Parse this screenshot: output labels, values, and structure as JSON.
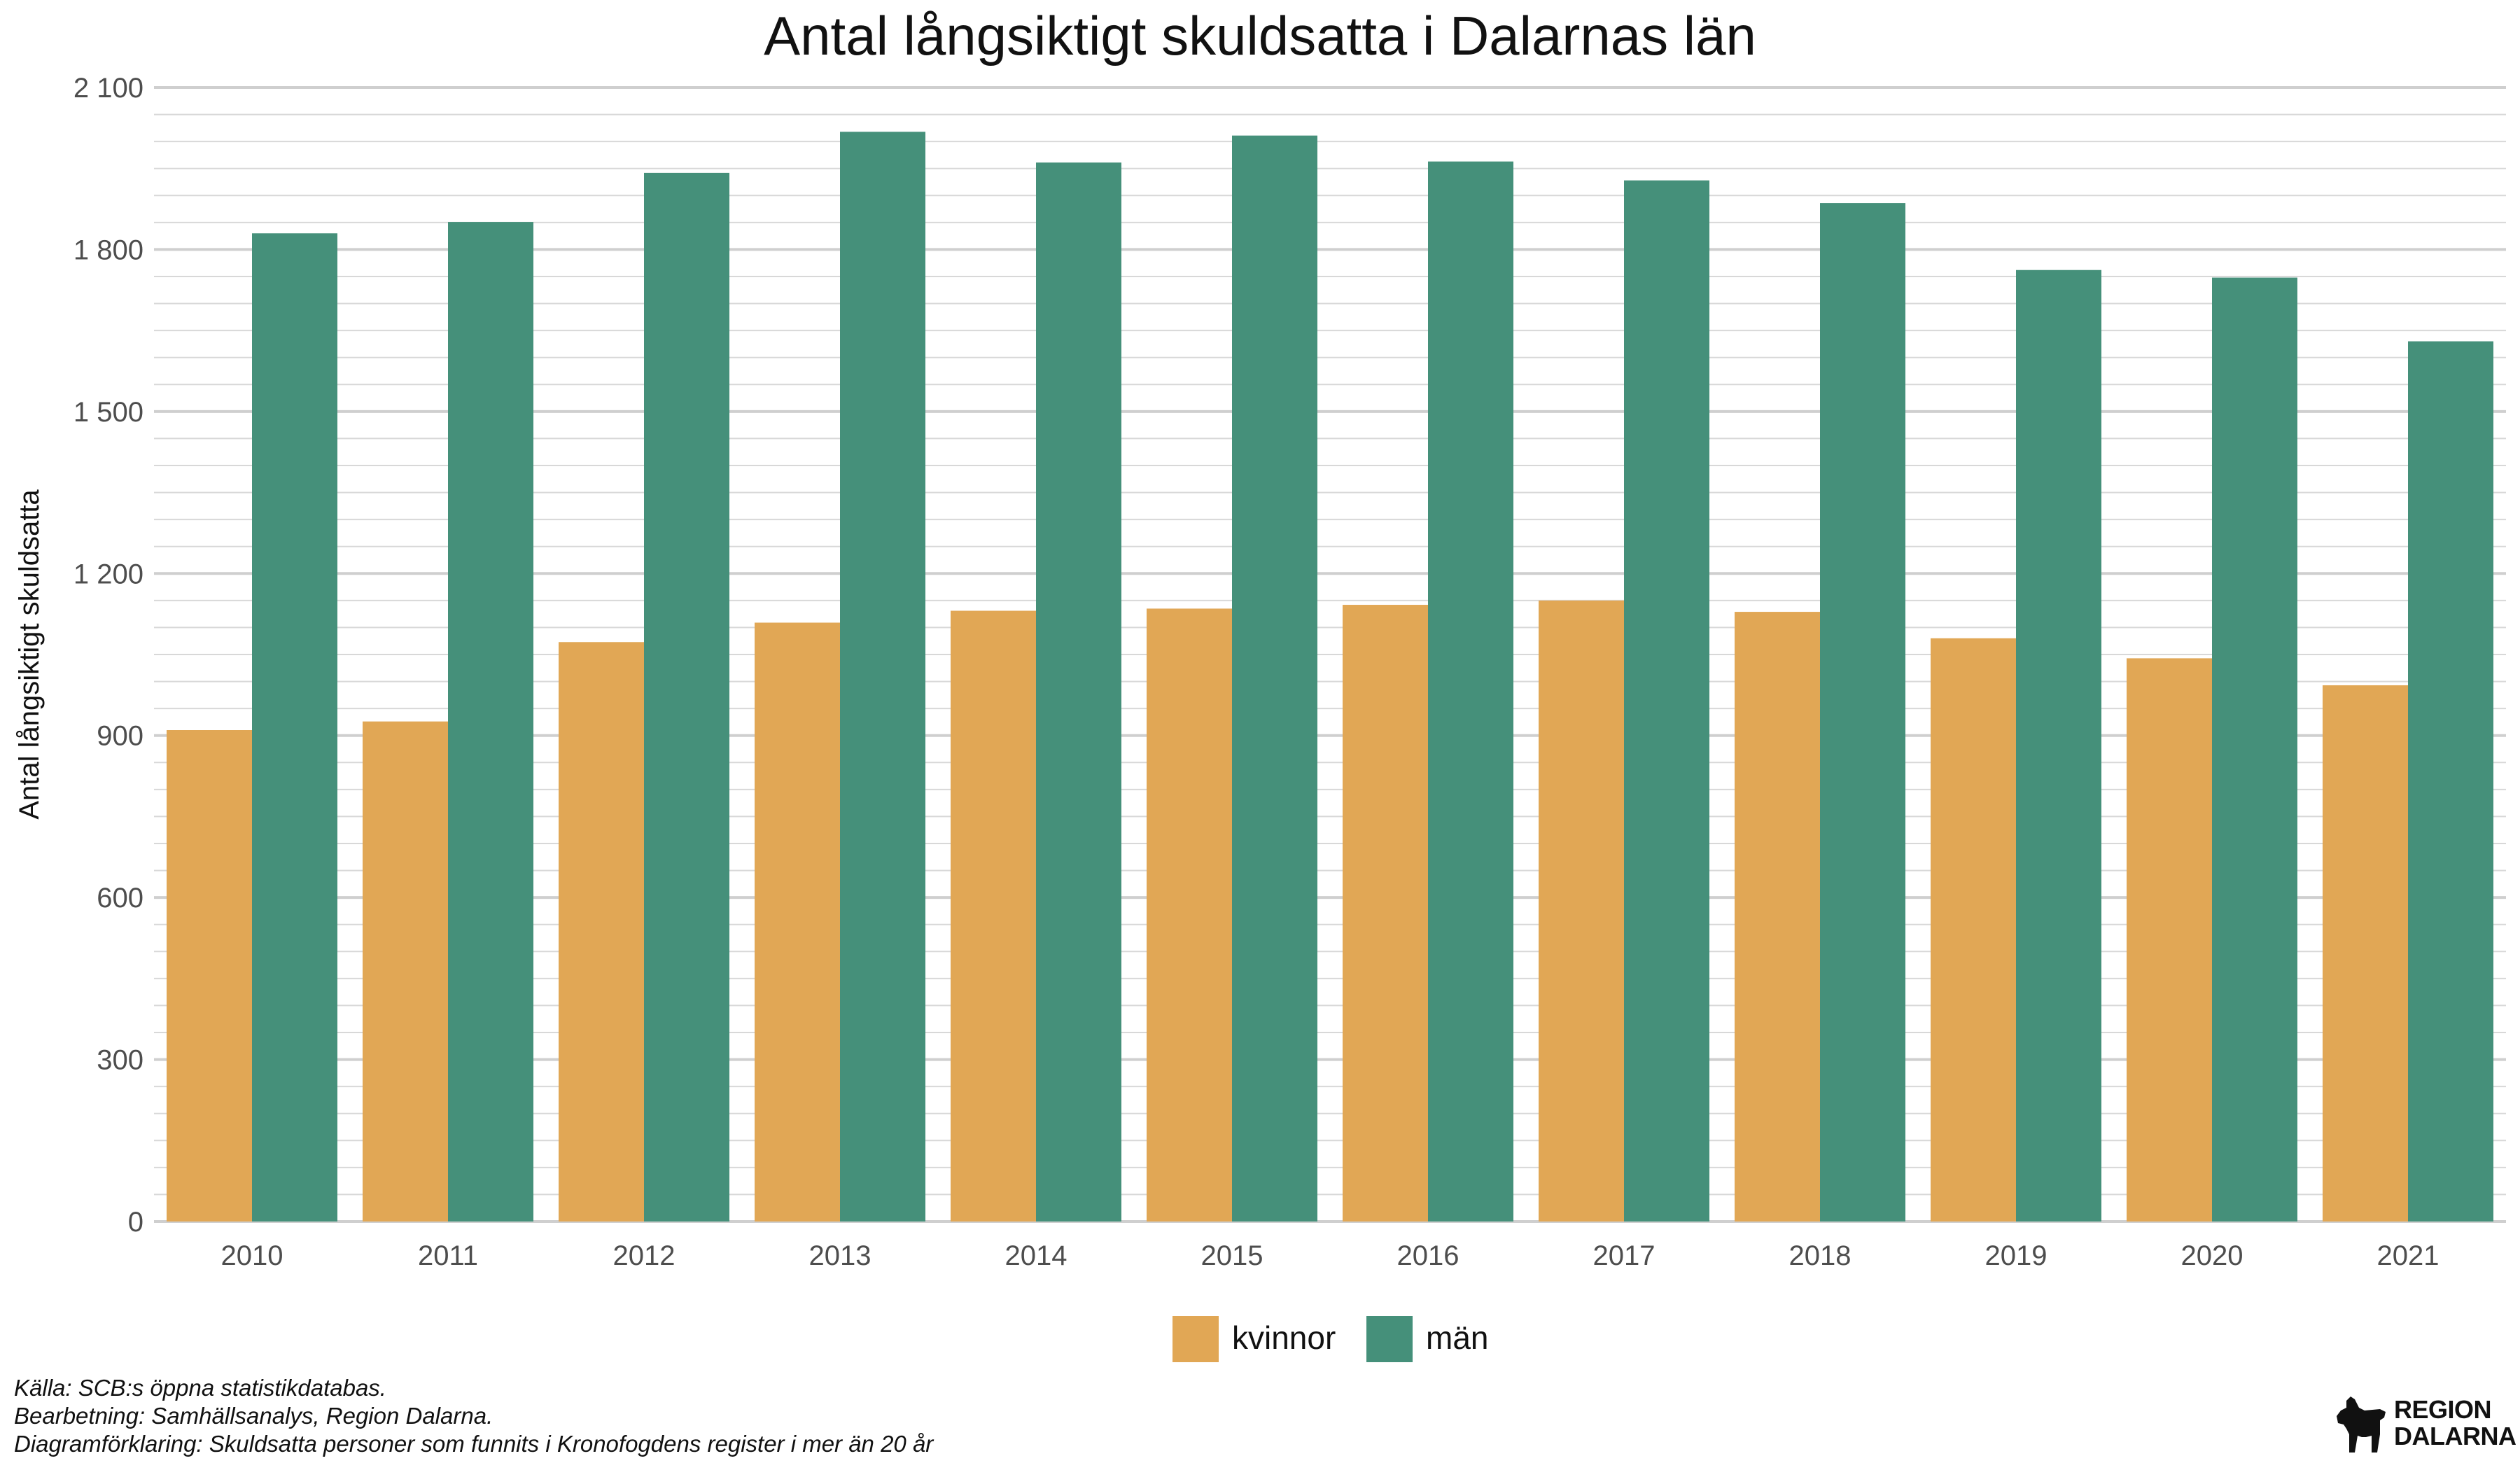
{
  "chart_data": {
    "type": "bar",
    "title": "Antal långsiktigt skuldsatta i Dalarnas län",
    "xlabel": "",
    "ylabel": "Antal långsiktigt skuldsatta",
    "ylim": [
      0,
      2100
    ],
    "yticks": [
      0,
      300,
      600,
      900,
      1200,
      1500,
      1800,
      2100
    ],
    "ytick_labels": [
      "0",
      "300",
      "600",
      "900",
      "1 200",
      "1 500",
      "1 800",
      "2 100"
    ],
    "categories": [
      "2010",
      "2011",
      "2012",
      "2013",
      "2014",
      "2015",
      "2016",
      "2017",
      "2018",
      "2019",
      "2020",
      "2021"
    ],
    "series": [
      {
        "name": "kvinnor",
        "color": "#E1A755",
        "values": [
          910,
          926,
          1073,
          1109,
          1131,
          1135,
          1142,
          1150,
          1129,
          1080,
          1043,
          993
        ]
      },
      {
        "name": "män",
        "color": "#45907A",
        "values": [
          1830,
          1851,
          1942,
          2018,
          1961,
          2011,
          1963,
          1928,
          1886,
          1762,
          1748,
          1630
        ]
      }
    ],
    "grid": true,
    "legend_position": "bottom"
  },
  "footer": {
    "source": "Källa: SCB:s öppna statistikdatabas.",
    "processing": "Bearbetning: Samhällsanalys, Region Dalarna.",
    "explanation": "Diagramförklaring: Skuldsatta personer som funnits i Kronofogdens register i mer än 20 år"
  },
  "logo": {
    "line1": "REGION",
    "line2": "DALARNA"
  }
}
